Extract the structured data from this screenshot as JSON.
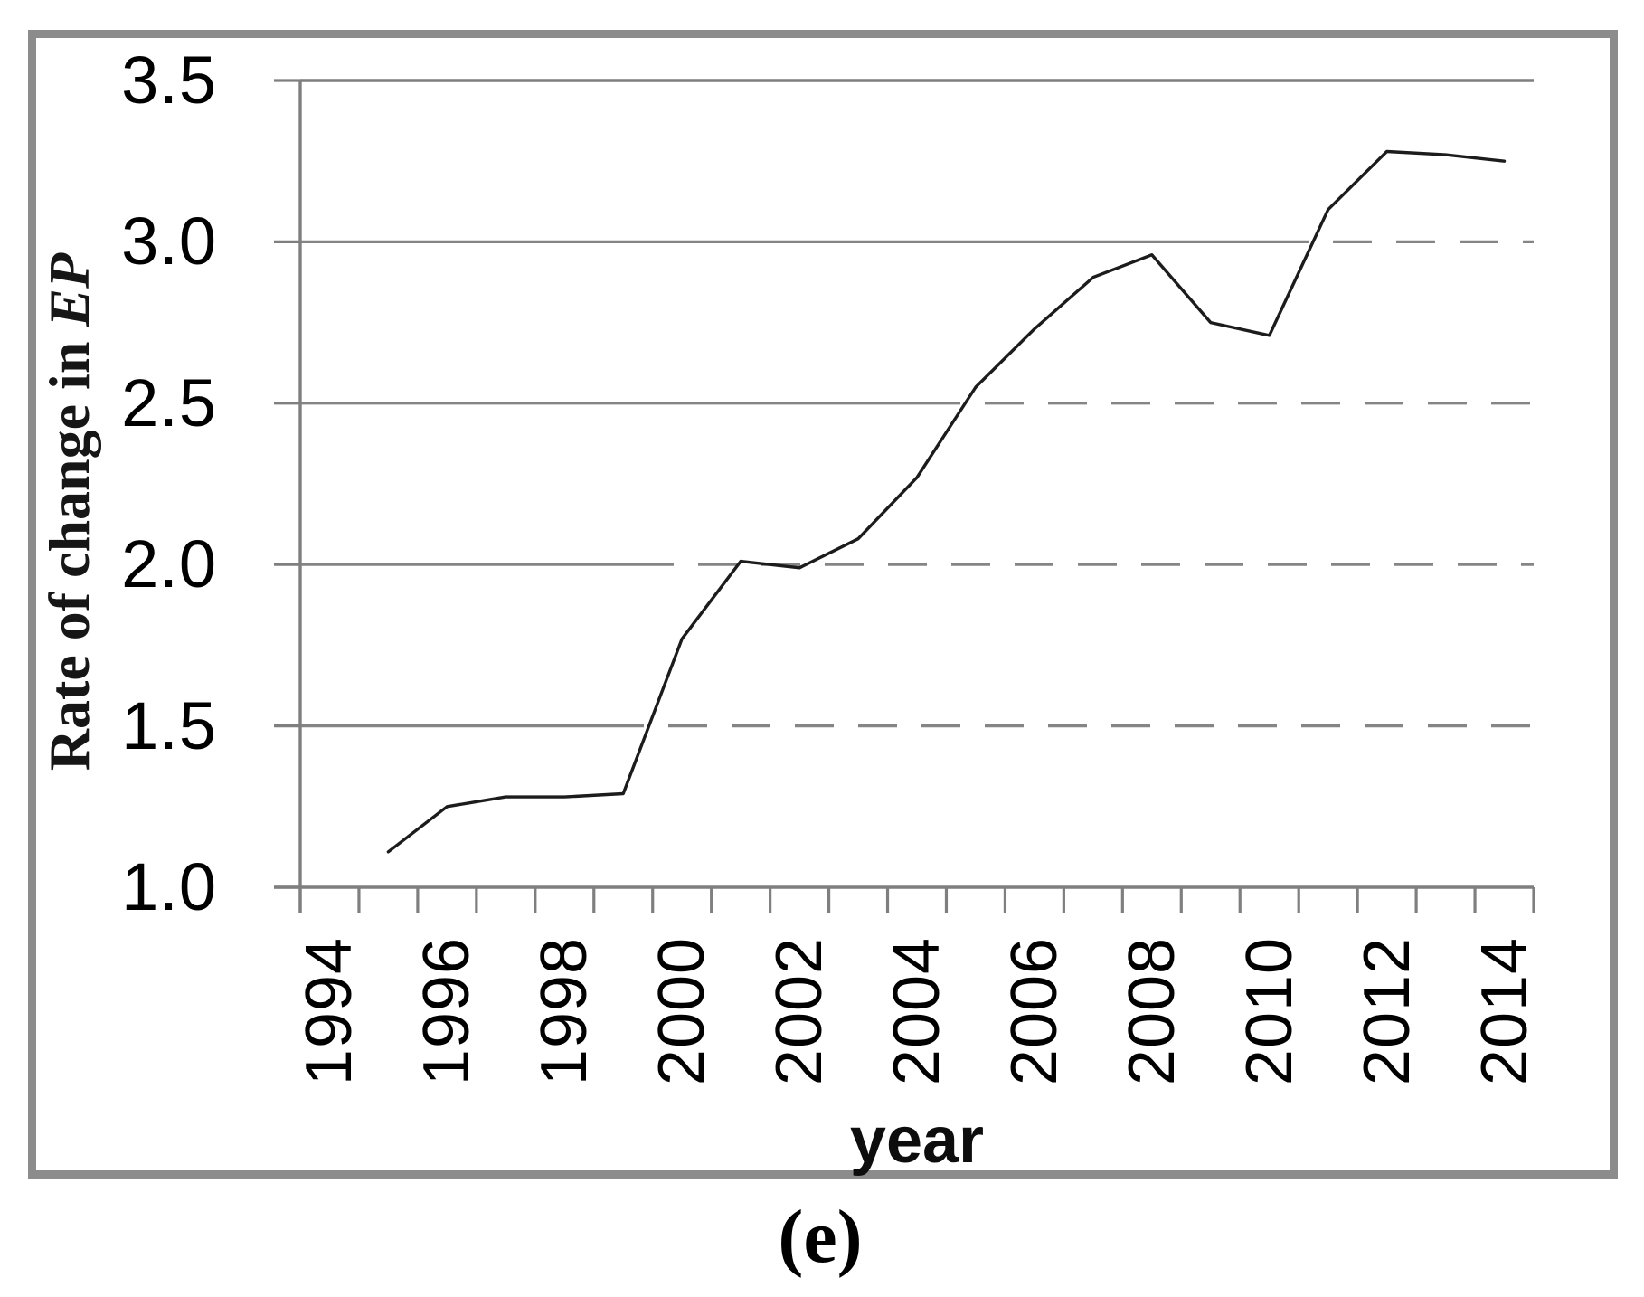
{
  "caption": "(e)",
  "chart_data": {
    "type": "line",
    "title": "",
    "xlabel": "year",
    "ylabel": "Rate of change in EP",
    "ylabel_main": "Rate of change in ",
    "ylabel_em": "EP",
    "x": [
      1995,
      1996,
      1997,
      1998,
      1999,
      2000,
      2001,
      2002,
      2003,
      2004,
      2005,
      2006,
      2007,
      2008,
      2009,
      2010,
      2011,
      2012,
      2013,
      2014
    ],
    "values": [
      1.11,
      1.25,
      1.28,
      1.28,
      1.29,
      1.77,
      2.01,
      1.99,
      2.08,
      2.27,
      2.55,
      2.73,
      2.89,
      2.96,
      2.75,
      2.71,
      3.1,
      3.28,
      3.27,
      3.25
    ],
    "x_categories_range": [
      "1994",
      "2014"
    ],
    "x_tick_labels": [
      "1994",
      "1996",
      "1998",
      "2000",
      "2002",
      "2004",
      "2006",
      "2008",
      "2010",
      "2012",
      "2014"
    ],
    "y_ticks": [
      3.5,
      3.0,
      2.5,
      2.0,
      1.5,
      1.0
    ],
    "y_tick_labels": [
      "3.5",
      "3.0",
      "2.5",
      "2.0",
      "1.5",
      "1.0"
    ],
    "ylim": [
      1.0,
      3.5
    ],
    "grid": "horizontal, dashed right of curve crossing",
    "legend": "none",
    "colors": {
      "line": "#1c1c1c",
      "grid": "#858585",
      "axis": "#7f7f7f",
      "frame": "#8c8c8c",
      "text": "#000000"
    }
  }
}
